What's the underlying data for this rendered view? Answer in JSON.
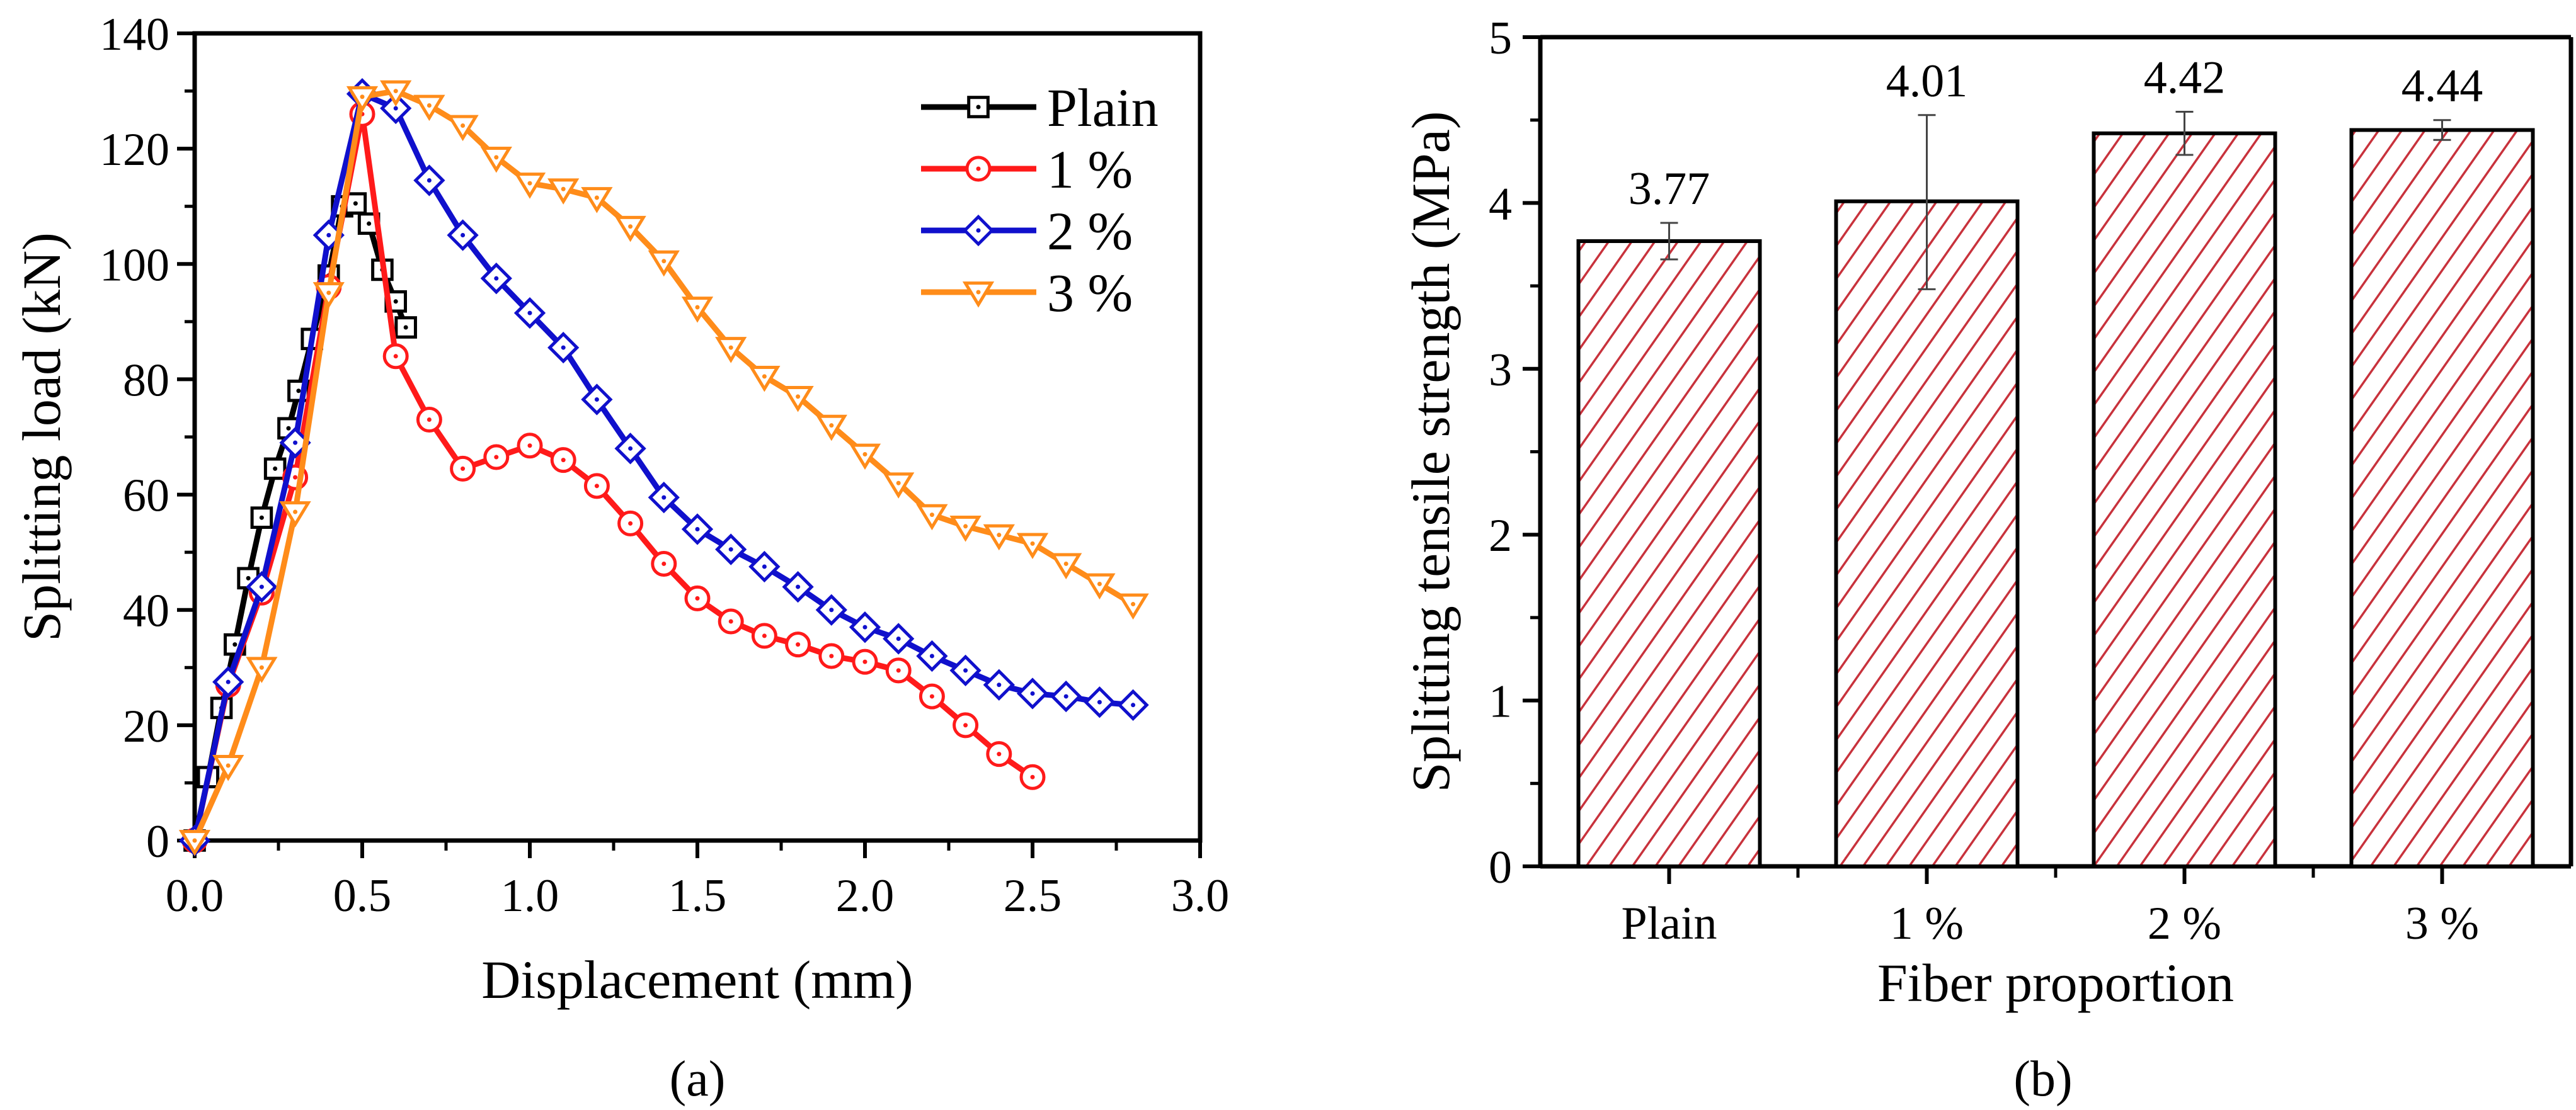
{
  "chart_data": [
    {
      "type": "line",
      "panel_label": "(a)",
      "xlabel": "Displacement (mm)",
      "ylabel": "Splitting load (kN)",
      "xlim": [
        0,
        3.0
      ],
      "ylim": [
        0,
        140
      ],
      "xticks": [
        "0.0",
        "0.5",
        "1.0",
        "1.5",
        "2.0",
        "2.5",
        "3.0"
      ],
      "yticks": [
        "0",
        "20",
        "40",
        "60",
        "80",
        "100",
        "120",
        "140"
      ],
      "legend_position": "top-right",
      "grid": false,
      "series": [
        {
          "name": "Plain",
          "color": "#000000",
          "marker": "square",
          "x": [
            0,
            0.04,
            0.08,
            0.12,
            0.16,
            0.2,
            0.24,
            0.28,
            0.31,
            0.35,
            0.4,
            0.44,
            0.48,
            0.52,
            0.56,
            0.6,
            0.63
          ],
          "y": [
            0,
            11,
            23,
            34,
            45.5,
            56,
            64.5,
            71.5,
            78,
            87,
            98,
            110,
            110.5,
            107,
            99,
            93.5,
            89
          ]
        },
        {
          "name": "1 %",
          "color": "#ff1a1a",
          "marker": "circle",
          "x": [
            0,
            0.1,
            0.2,
            0.3,
            0.4,
            0.5,
            0.6,
            0.7,
            0.8,
            0.9,
            1.0,
            1.1,
            1.2,
            1.3,
            1.4,
            1.5,
            1.6,
            1.7,
            1.8,
            1.9,
            2.0,
            2.1,
            2.2,
            2.3,
            2.4,
            2.5
          ],
          "y": [
            0,
            27,
            43,
            63,
            96,
            126,
            84,
            73,
            64.5,
            66.5,
            68.5,
            66,
            61.5,
            55,
            48,
            42,
            38,
            35.5,
            34,
            32,
            31,
            29.5,
            25,
            20,
            15,
            11
          ]
        },
        {
          "name": "2 %",
          "color": "#1010cc",
          "marker": "diamond",
          "x": [
            0,
            0.1,
            0.2,
            0.3,
            0.4,
            0.5,
            0.6,
            0.7,
            0.8,
            0.9,
            1.0,
            1.1,
            1.2,
            1.3,
            1.4,
            1.5,
            1.6,
            1.7,
            1.8,
            1.9,
            2.0,
            2.1,
            2.2,
            2.3,
            2.4,
            2.5,
            2.6,
            2.7,
            2.8
          ],
          "y": [
            0,
            27.5,
            44,
            69,
            105,
            129.5,
            127,
            114.5,
            105,
            97.5,
            91.5,
            85.5,
            76.5,
            68,
            59.5,
            54,
            50.5,
            47.5,
            44,
            40,
            37,
            35,
            32,
            29.5,
            27,
            25.5,
            25,
            24,
            23.5
          ]
        },
        {
          "name": "3 %",
          "color": "#ff8c1a",
          "marker": "triangle-down",
          "x": [
            0,
            0.1,
            0.2,
            0.3,
            0.4,
            0.5,
            0.6,
            0.7,
            0.8,
            0.9,
            1.0,
            1.1,
            1.2,
            1.3,
            1.4,
            1.5,
            1.6,
            1.7,
            1.8,
            1.9,
            2.0,
            2.1,
            2.2,
            2.3,
            2.4,
            2.5,
            2.6,
            2.7,
            2.8
          ],
          "y": [
            0,
            13,
            30,
            57,
            95,
            129,
            130,
            127.5,
            124,
            118.5,
            114,
            113,
            111.5,
            106.5,
            100.5,
            92.5,
            85.5,
            80.5,
            77,
            72,
            67,
            62,
            56.5,
            54.5,
            53,
            51.5,
            48,
            44.5,
            41
          ]
        }
      ]
    },
    {
      "type": "bar",
      "panel_label": "(b)",
      "xlabel": "Fiber proportion",
      "ylabel": "Splitting tensile strength (MPa)",
      "ylim": [
        0,
        5
      ],
      "yticks": [
        "0",
        "1",
        "2",
        "3",
        "4",
        "5"
      ],
      "categories": [
        "Plain",
        "1 %",
        "2 %",
        "3 %"
      ],
      "values": [
        3.77,
        4.01,
        4.42,
        4.44
      ],
      "value_labels": [
        "3.77",
        "4.01",
        "4.42",
        "4.44"
      ],
      "error_low": [
        3.66,
        3.48,
        4.29,
        4.38
      ],
      "error_high": [
        3.88,
        4.53,
        4.55,
        4.5
      ],
      "bar_fill": "hatched",
      "hatch_color": "#c8323c",
      "grid": false
    }
  ]
}
